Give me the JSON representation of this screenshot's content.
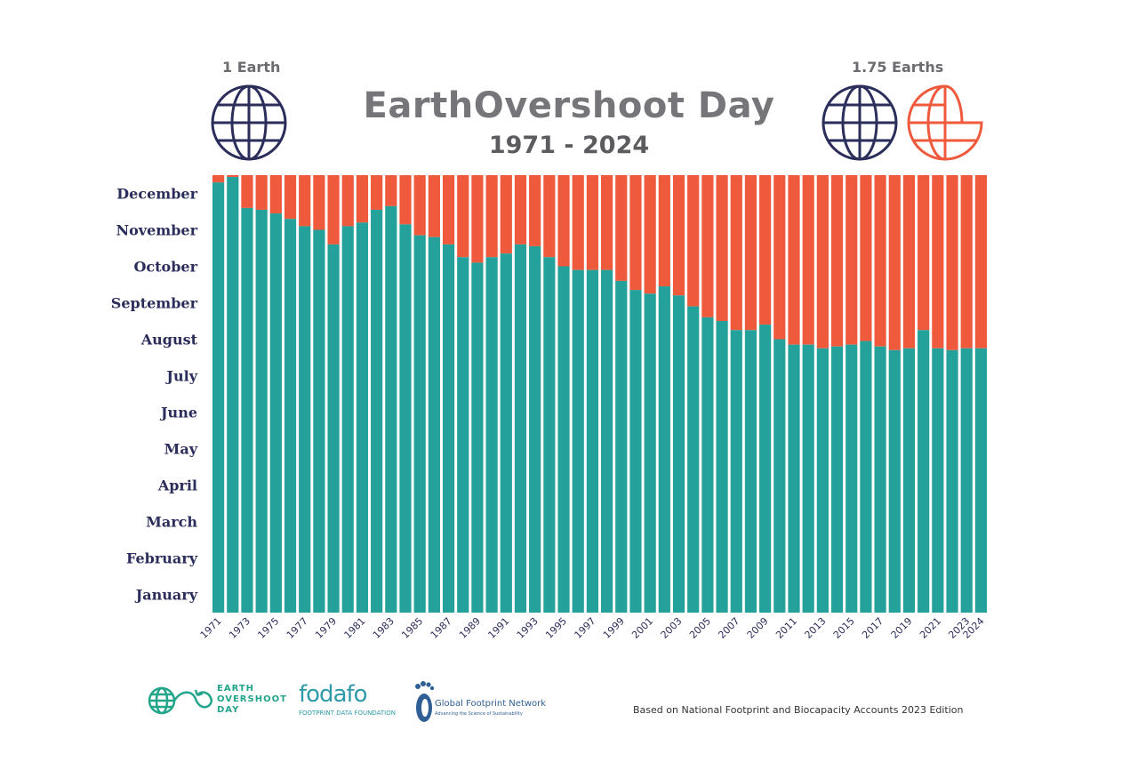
{
  "header": {
    "title": "EarthOvershoot Day",
    "subtitle": "1971 - 2024",
    "left_globe_label": "1 Earth",
    "right_globe_label": "1.75 Earths"
  },
  "colors": {
    "used": "#23a19a",
    "overshoot": "#ef5a3d",
    "month_label": "#2b2d5b",
    "globe_dark": "#2b2d5b",
    "globe_orange": "#ef5a3d"
  },
  "chart_data": {
    "type": "bar",
    "title": "EarthOvershoot Day",
    "subtitle": "1971 - 2024",
    "xlabel": "",
    "ylabel": "",
    "y_unit": "months elapsed in the year (0 = Jan 1, 12 = Dec 31)",
    "ylim": [
      0,
      12
    ],
    "y_tick_labels": [
      "January",
      "February",
      "March",
      "April",
      "May",
      "June",
      "July",
      "August",
      "September",
      "October",
      "November",
      "December"
    ],
    "categories": [
      "1971",
      "1972",
      "1973",
      "1974",
      "1975",
      "1976",
      "1977",
      "1978",
      "1979",
      "1980",
      "1981",
      "1982",
      "1983",
      "1984",
      "1985",
      "1986",
      "1987",
      "1988",
      "1989",
      "1990",
      "1991",
      "1992",
      "1993",
      "1994",
      "1995",
      "1996",
      "1997",
      "1998",
      "1999",
      "2000",
      "2001",
      "2002",
      "2003",
      "2004",
      "2005",
      "2006",
      "2007",
      "2008",
      "2009",
      "2010",
      "2011",
      "2012",
      "2013",
      "2014",
      "2015",
      "2016",
      "2017",
      "2018",
      "2019",
      "2020",
      "2021",
      "2022",
      "2023",
      "2024"
    ],
    "x_tick_labels": [
      "1971",
      "1973",
      "1975",
      "1977",
      "1979",
      "1981",
      "1983",
      "1985",
      "1987",
      "1989",
      "1991",
      "1993",
      "1995",
      "1997",
      "1999",
      "2001",
      "2003",
      "2005",
      "2007",
      "2009",
      "2011",
      "2013",
      "2015",
      "2017",
      "2019",
      "2021",
      "2023",
      "2024"
    ],
    "series": [
      {
        "name": "Earth Overshoot Day",
        "values": [
          11.8,
          11.95,
          11.1,
          11.05,
          10.95,
          10.8,
          10.6,
          10.5,
          10.1,
          10.6,
          10.7,
          11.05,
          11.15,
          10.65,
          10.35,
          10.3,
          10.1,
          9.75,
          9.6,
          9.75,
          9.85,
          10.1,
          10.05,
          9.75,
          9.5,
          9.4,
          9.4,
          9.4,
          9.1,
          8.85,
          8.75,
          8.95,
          8.7,
          8.4,
          8.1,
          8.0,
          7.75,
          7.75,
          7.9,
          7.5,
          7.35,
          7.35,
          7.25,
          7.3,
          7.35,
          7.45,
          7.3,
          7.2,
          7.25,
          7.75,
          7.25,
          7.2,
          7.25,
          7.25
        ]
      }
    ]
  },
  "logos": {
    "eod_line1": "EARTH",
    "eod_line2": "OVERSHOOT",
    "eod_line3": "DAY",
    "fodafo_name": "fodafo",
    "fodafo_sub": "FOOTPRINT DATA FOUNDATION",
    "gfn_name": "Global Footprint Network",
    "gfn_sub": "Advancing the Science of Sustainability"
  },
  "footer": {
    "note": "Based on National Footprint and Biocapacity Accounts 2023 Edition"
  }
}
